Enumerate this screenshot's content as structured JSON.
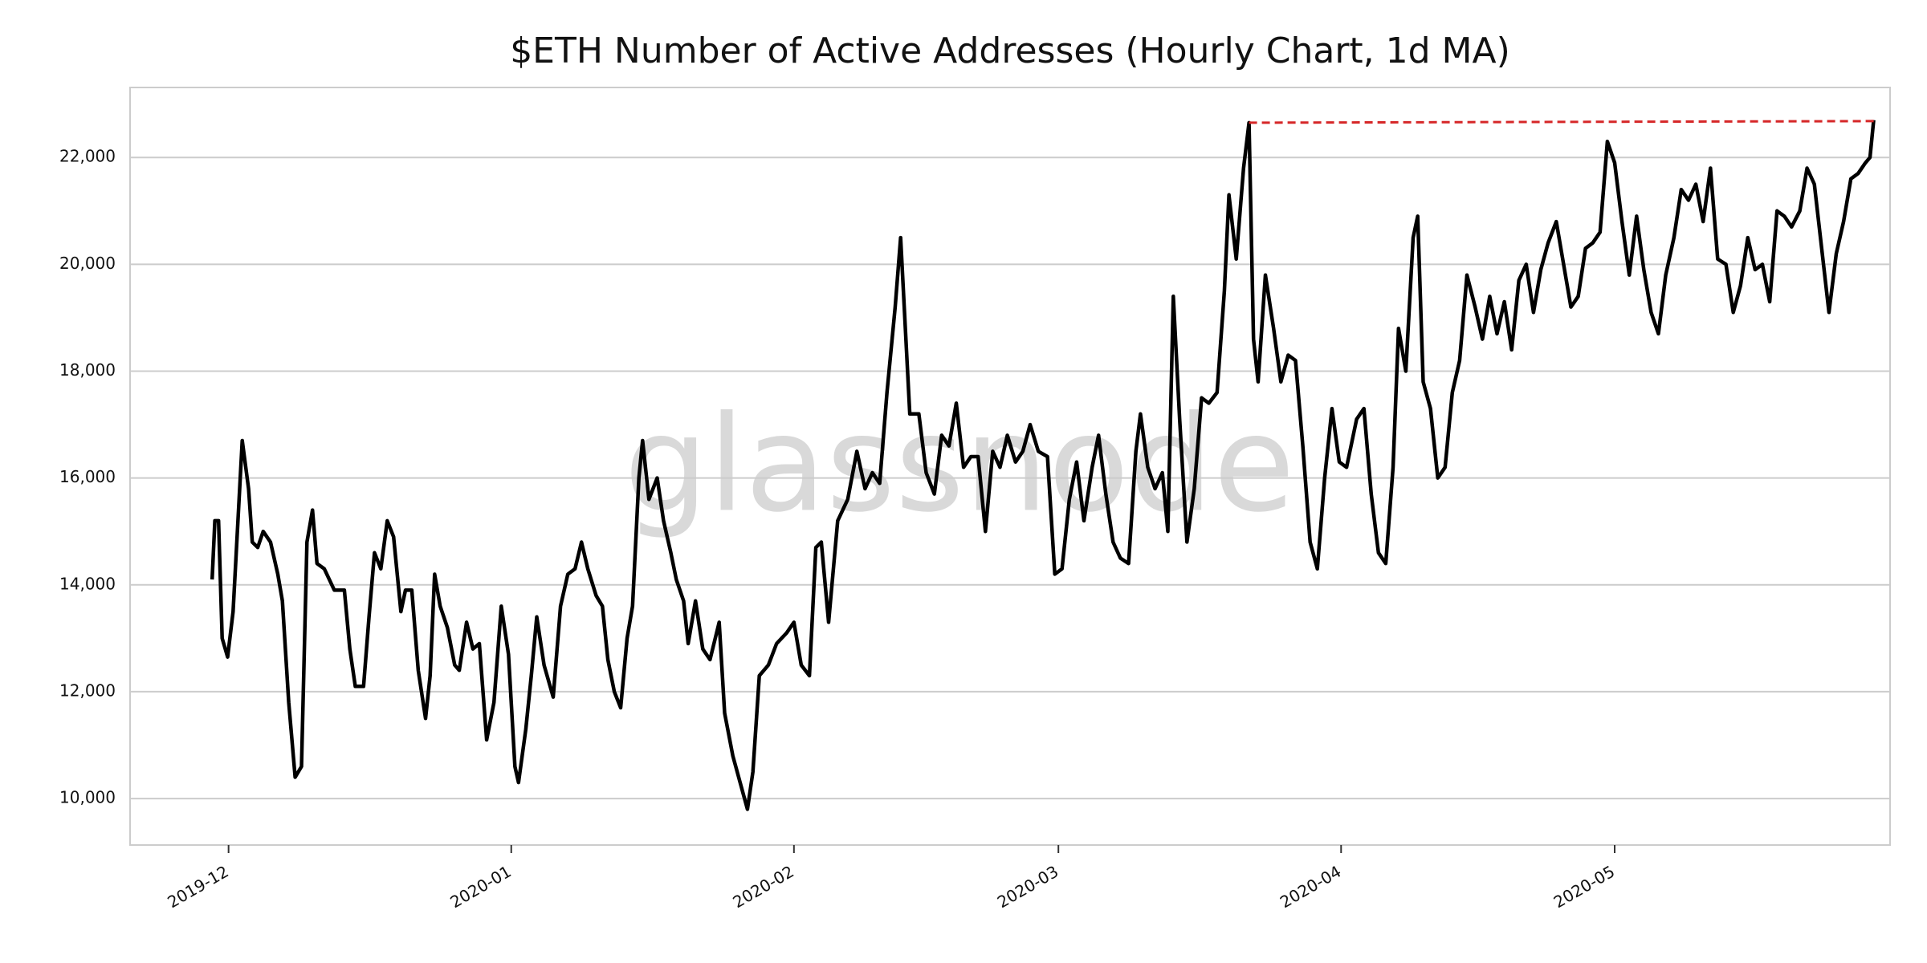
{
  "chart_data": {
    "type": "line",
    "title": "$ETH Number of Active Addresses (Hourly Chart, 1d MA)",
    "watermark": "glassnode",
    "color": "#000000",
    "x": [
      -1.8,
      -1.5,
      -1.1,
      -0.7,
      -0.1,
      0.5,
      1.5,
      2.2,
      2.6,
      3.2,
      3.8,
      4.6,
      5.4,
      5.9,
      6.6,
      7.3,
      8,
      8.6,
      9.2,
      9.7,
      10.5,
      11.6,
      12.7,
      13.3,
      13.9,
      14.8,
      15.4,
      16,
      16.7,
      17.4,
      18.1,
      18.9,
      19.4,
      20.1,
      20.8,
      21.6,
      22.1,
      22.6,
      23.2,
      24,
      24.8,
      25.3,
      26.1,
      26.8,
      27.5,
      28.3,
      29.1,
      29.9,
      30.7,
      31.4,
      31.8,
      32.6,
      33.2,
      33.8,
      34.6,
      35.6,
      36.4,
      37.2,
      38,
      38.7,
      39.4,
      40.3,
      41,
      41.6,
      42.3,
      43,
      43.7,
      44.3,
      45,
      45.4,
      46.1,
      47,
      47.7,
      48.5,
      49.1,
      49.9,
      50.4,
      51.2,
      52,
      52.8,
      53.8,
      54.4,
      55.3,
      56.1,
      56.9,
      57.5,
      58.2,
      59.2,
      60.1,
      61.2,
      62,
      62.8,
      63.7,
      64.4,
      65,
      65.8,
      66.8,
      67.9,
      68.9,
      69.8,
      70.6,
      71.4,
      72.2,
      73.1,
      73.7,
      74.7,
      75.7,
      76.5,
      77.4,
      78.2,
      79,
      79.8,
      80.6,
      81.4,
      82.2,
      83,
      83.8,
      84.6,
      85.4,
      86.3,
      87.1,
      87.9,
      88.8,
      89.8,
      90.6,
      91.4,
      92.2,
      93,
      93.8,
      94.7,
      95.4,
      96.2,
      97,
      97.8,
      98.7,
      99.5,
      100,
      100.8,
      101.6,
      102.4,
      103,
      103.6,
      104.3,
      105.1,
      105.9,
      106.7,
      107.5,
      108.4,
      109.2,
      109.7,
      110.5,
      111.3,
      111.9,
      112.4,
      112.9,
      113.7,
      114.6,
      115.4,
      116.2,
      117,
      117.8,
      118.6,
      119.4,
      120.2,
      121,
      121.8,
      122.6,
      123.7,
      124.5,
      125.3,
      126.1,
      126.9,
      127.7,
      128.3,
      129.1,
      129.9,
      130.4,
      131,
      131.8,
      132.6,
      133.4,
      134.2,
      135,
      135.8,
      136.7,
      137.5,
      138.3,
      139.1,
      139.9,
      140.7,
      141.5,
      142.3,
      143.1,
      143.9,
      144.7,
      145.6,
      146.4,
      147.2,
      148,
      148.8,
      149.6,
      150.4,
      151.2,
      152,
      152.8,
      153.6,
      154.4,
      155.2,
      156,
      156.8,
      157.6,
      158.5,
      159.3,
      160.1,
      160.9,
      161.7,
      162.5,
      163.3,
      164.2,
      165,
      165.8,
      166.6,
      167.4,
      168.2,
      169,
      169.8,
      170.6,
      171.4,
      172.3,
      173.1,
      173.9,
      174.7,
      175.5,
      176.3,
      177.1,
      177.9,
      178.7,
      179.5,
      180,
      180.4
    ],
    "values": [
      14100,
      15200,
      15200,
      13000,
      12650,
      13500,
      16700,
      15800,
      14800,
      14700,
      15000,
      14800,
      14200,
      13700,
      11800,
      10400,
      10600,
      14800,
      15400,
      14400,
      14300,
      13900,
      13900,
      12800,
      12100,
      12100,
      13400,
      14600,
      14300,
      15200,
      14900,
      13500,
      13900,
      13900,
      12400,
      11500,
      12300,
      14200,
      13600,
      13200,
      12500,
      12400,
      13300,
      12800,
      12900,
      11100,
      11800,
      13600,
      12700,
      10600,
      10300,
      11300,
      12300,
      13400,
      12500,
      11900,
      13600,
      14200,
      14300,
      14800,
      14300,
      13800,
      13600,
      12600,
      12000,
      11700,
      13000,
      13600,
      16000,
      16700,
      15600,
      16000,
      15200,
      14600,
      14100,
      13700,
      12900,
      13700,
      12800,
      12600,
      13300,
      11600,
      10800,
      10300,
      9800,
      10500,
      12300,
      12500,
      12900,
      13100,
      13300,
      12500,
      12300,
      14700,
      14800,
      13300,
      15200,
      15600,
      16500,
      15800,
      16100,
      15900,
      17600,
      19200,
      20500,
      17200,
      17200,
      16100,
      15700,
      16800,
      16600,
      17400,
      16200,
      16400,
      16400,
      15000,
      16500,
      16200,
      16800,
      16300,
      16500,
      17000,
      16500,
      16400,
      14200,
      14300,
      15600,
      16300,
      15200,
      16200,
      16800,
      15700,
      14800,
      14500,
      14400,
      16500,
      17200,
      16200,
      15800,
      16100,
      15000,
      19400,
      17100,
      14800,
      15800,
      17500,
      17400,
      17600,
      19500,
      21300,
      20100,
      21800,
      22650,
      18600,
      17800,
      19800,
      18800,
      17800,
      18300,
      18200,
      16600,
      14800,
      14300,
      16000,
      17300,
      16300,
      16200,
      17100,
      17300,
      15700,
      14600,
      14400,
      16200,
      18800,
      18000,
      20500,
      20900,
      17800,
      17300,
      16000,
      16200,
      17600,
      18200,
      19800,
      19200,
      18600,
      19400,
      18700,
      19300,
      18400,
      19700,
      20000,
      19100,
      19900,
      20400,
      20800,
      20000,
      19200,
      19400,
      20300,
      20400,
      20600,
      22300,
      21900,
      20800,
      19800,
      20900,
      19900,
      19100,
      18700,
      19800,
      20500,
      21400,
      21200,
      21500,
      20800,
      21800,
      20100,
      20000,
      19100,
      19600,
      20500,
      19900,
      20000,
      19300,
      21000,
      20900,
      20700,
      21000,
      21800,
      21500,
      20300,
      19100,
      20200,
      20800,
      21600,
      21700,
      21900,
      22000,
      22700
    ],
    "reference_line": {
      "x": [
        111.9,
        180.4
      ],
      "values": [
        22650,
        22680
      ],
      "color": "#d62728"
    },
    "xlim": [
      -10.8,
      182.2
    ],
    "xticks": [
      {
        "value": 0,
        "label": "2019-12"
      },
      {
        "value": 31,
        "label": "2020-01"
      },
      {
        "value": 62,
        "label": "2020-02"
      },
      {
        "value": 91,
        "label": "2020-03"
      },
      {
        "value": 122,
        "label": "2020-04"
      },
      {
        "value": 152,
        "label": "2020-05"
      }
    ],
    "ylim": [
      9130,
      23310
    ],
    "yticks": [
      {
        "value": 10000,
        "label": "10,000"
      },
      {
        "value": 12000,
        "label": "12,000"
      },
      {
        "value": 14000,
        "label": "14,000"
      },
      {
        "value": 16000,
        "label": "16,000"
      },
      {
        "value": 18000,
        "label": "18,000"
      },
      {
        "value": 20000,
        "label": "20,000"
      },
      {
        "value": 22000,
        "label": "22,000"
      }
    ],
    "grid": true
  }
}
